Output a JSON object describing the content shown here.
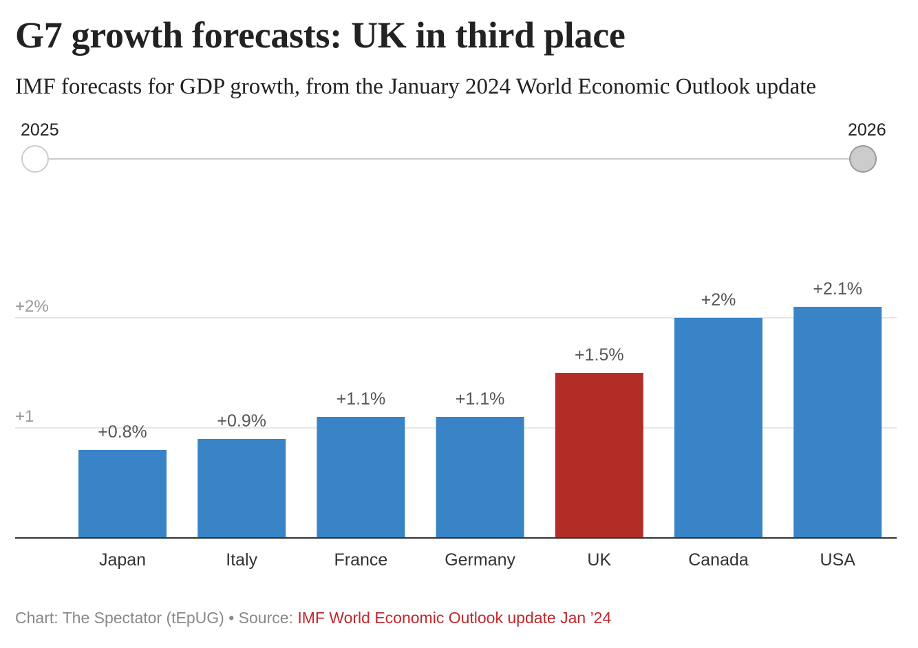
{
  "title": "G7 growth forecasts: UK in third place",
  "subtitle": "IMF forecasts for GDP growth, from the January 2024 World Economic Outlook update",
  "slider": {
    "start_label": "2025",
    "end_label": "2026",
    "selected": "2026"
  },
  "colors": {
    "bar": "#3884c6",
    "highlight": "#b32d27",
    "gridline": "#dddddd",
    "axis": "#333333"
  },
  "chart_data": {
    "type": "bar",
    "categories": [
      "Japan",
      "Italy",
      "France",
      "Germany",
      "UK",
      "Canada",
      "USA"
    ],
    "values": [
      0.8,
      0.9,
      1.1,
      1.1,
      1.5,
      2.0,
      2.1
    ],
    "data_labels": [
      "+0.8%",
      "+0.9%",
      "+1.1%",
      "+1.1%",
      "+1.5%",
      "+2%",
      "+2.1%"
    ],
    "highlight": "UK",
    "yticks": [
      1,
      2
    ],
    "ytick_labels": [
      "+1",
      "+2%"
    ],
    "ylim": [
      0,
      2.1
    ],
    "grid": true
  },
  "footer": {
    "credit": "Chart: The Spectator (tEpUG)",
    "separator": " • ",
    "source_prefix": "Source: ",
    "source_link": "IMF World Economic Outlook update Jan ’24"
  }
}
